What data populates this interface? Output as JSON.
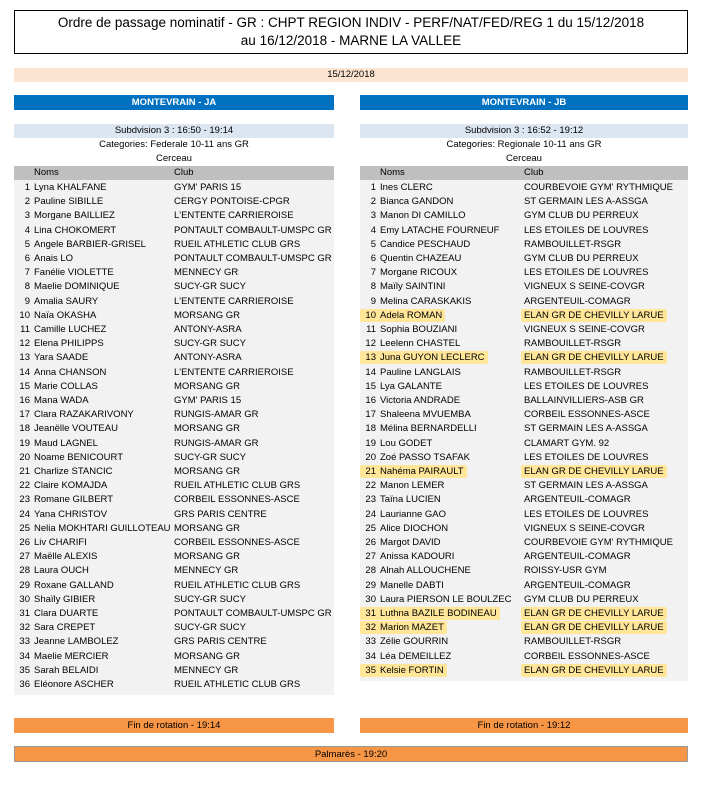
{
  "header": {
    "title": "Ordre de passage nominatif - GR : CHPT REGION INDIV - PERF/NAT/FED/REG 1 du 15/12/2018 au 16/12/2018 - MARNE LA VALLEE"
  },
  "date": "15/12/2018",
  "columns": [
    {
      "team": "MONTEVRAIN - JA",
      "subdivision": "Subdvision 3 : 16:50 - 19:14",
      "category": "Categories: Federale 10-11 ans GR",
      "apparatus": "Cerceau",
      "headers": [
        "Noms",
        "Club"
      ],
      "rows": [
        {
          "rank": 1,
          "name": "Lyna KHALFANE",
          "club": "GYM' PARIS 15"
        },
        {
          "rank": 2,
          "name": "Pauline SIBILLE",
          "club": "CERGY PONTOISE-CPGR"
        },
        {
          "rank": 3,
          "name": "Morgane BAILLIEZ",
          "club": "L'ENTENTE CARRIEROISE"
        },
        {
          "rank": 4,
          "name": "Lina CHOKOMERT",
          "club": "PONTAULT COMBAULT-UMSPC GR"
        },
        {
          "rank": 5,
          "name": "Angele BARBIER-GRISEL",
          "club": "RUEIL ATHLETIC CLUB GRS"
        },
        {
          "rank": 6,
          "name": "Anais LO",
          "club": "PONTAULT COMBAULT-UMSPC GR"
        },
        {
          "rank": 7,
          "name": "Fanélie VIOLETTE",
          "club": "MENNECY GR"
        },
        {
          "rank": 8,
          "name": "Maelie DOMINIQUE",
          "club": "SUCY-GR SUCY"
        },
        {
          "rank": 9,
          "name": "Amalia SAURY",
          "club": "L'ENTENTE CARRIEROISE"
        },
        {
          "rank": 10,
          "name": "Naïa OKASHA",
          "club": "MORSANG GR"
        },
        {
          "rank": 11,
          "name": "Camille LUCHEZ",
          "club": "ANTONY-ASRA"
        },
        {
          "rank": 12,
          "name": "Elena PHILIPPS",
          "club": "SUCY-GR SUCY"
        },
        {
          "rank": 13,
          "name": "Yara SAADE",
          "club": "ANTONY-ASRA"
        },
        {
          "rank": 14,
          "name": "Anna CHANSON",
          "club": "L'ENTENTE CARRIEROISE"
        },
        {
          "rank": 15,
          "name": "Marie COLLAS",
          "club": "MORSANG GR"
        },
        {
          "rank": 16,
          "name": "Mana WADA",
          "club": "GYM' PARIS 15"
        },
        {
          "rank": 17,
          "name": "Clara RAZAKARIVONY",
          "club": "RUNGIS-AMAR GR"
        },
        {
          "rank": 18,
          "name": "Jeanëlle VOUTEAU",
          "club": "MORSANG GR"
        },
        {
          "rank": 19,
          "name": "Maud LAGNEL",
          "club": "RUNGIS-AMAR GR"
        },
        {
          "rank": 20,
          "name": "Noame BENICOURT",
          "club": "SUCY-GR SUCY"
        },
        {
          "rank": 21,
          "name": "Charlize STANCIC",
          "club": "MORSANG GR"
        },
        {
          "rank": 22,
          "name": "Claire KOMAJDA",
          "club": "RUEIL ATHLETIC CLUB GRS"
        },
        {
          "rank": 23,
          "name": "Romane GILBERT",
          "club": "CORBEIL ESSONNES-ASCE"
        },
        {
          "rank": 24,
          "name": "Yana CHRISTOV",
          "club": "GRS PARIS CENTRE"
        },
        {
          "rank": 25,
          "name": "Nelia MOKHTARI GUILLOTEAU",
          "club": "MORSANG GR"
        },
        {
          "rank": 26,
          "name": "Liv CHARIFI",
          "club": "CORBEIL ESSONNES-ASCE"
        },
        {
          "rank": 27,
          "name": "Maëlle ALEXIS",
          "club": "MORSANG GR"
        },
        {
          "rank": 28,
          "name": "Laura OUCH",
          "club": "MENNECY GR"
        },
        {
          "rank": 29,
          "name": "Roxane GALLAND",
          "club": "RUEIL ATHLETIC CLUB GRS"
        },
        {
          "rank": 30,
          "name": "Shaïly GIBIER",
          "club": "SUCY-GR SUCY"
        },
        {
          "rank": 31,
          "name": "Clara DUARTE",
          "club": "PONTAULT COMBAULT-UMSPC GR"
        },
        {
          "rank": 32,
          "name": "Sara CREPET",
          "club": "SUCY-GR SUCY"
        },
        {
          "rank": 33,
          "name": "Jeanne LAMBOLEZ",
          "club": "GRS PARIS CENTRE"
        },
        {
          "rank": 34,
          "name": "Maelie MERCIER",
          "club": "MORSANG GR"
        },
        {
          "rank": 35,
          "name": "Sarah BELAIDI",
          "club": "MENNECY GR"
        },
        {
          "rank": 36,
          "name": "Eléonore ASCHER",
          "club": "RUEIL ATHLETIC CLUB GRS"
        }
      ],
      "footer": "Fin de rotation - 19:14"
    },
    {
      "team": "MONTEVRAIN - JB",
      "subdivision": "Subdvision 3 : 16:52 - 19:12",
      "category": "Categories: Regionale 10-11 ans GR",
      "apparatus": "Cerceau",
      "headers": [
        "Noms",
        "Club"
      ],
      "rows": [
        {
          "rank": 1,
          "name": "Ines CLERC",
          "club": "COURBEVOIE GYM' RYTHMIQUE"
        },
        {
          "rank": 2,
          "name": "Bianca GANDON",
          "club": "ST GERMAIN LES A-ASSGA"
        },
        {
          "rank": 3,
          "name": "Manon DI CAMILLO",
          "club": "GYM CLUB DU PERREUX"
        },
        {
          "rank": 4,
          "name": "Emy LATACHE FOURNEUF",
          "club": "LES ETOILES DE LOUVRES"
        },
        {
          "rank": 5,
          "name": "Candice PESCHAUD",
          "club": "RAMBOUILLET-RSGR"
        },
        {
          "rank": 6,
          "name": "Quentin CHAZEAU",
          "club": "GYM CLUB DU PERREUX"
        },
        {
          "rank": 7,
          "name": "Morgane RICOUX",
          "club": "LES ETOILES DE LOUVRES"
        },
        {
          "rank": 8,
          "name": "Maïly SAINTINI",
          "club": "VIGNEUX S SEINE-COVGR"
        },
        {
          "rank": 9,
          "name": "Melina CARASKAKIS",
          "club": "ARGENTEUIL-COMAGR"
        },
        {
          "rank": 10,
          "name": "Adela ROMAN",
          "club": "ELAN GR DE CHEVILLY LARUE",
          "highlight": true
        },
        {
          "rank": 11,
          "name": "Sophia BOUZIANI",
          "club": "VIGNEUX S SEINE-COVGR"
        },
        {
          "rank": 12,
          "name": "Leelenn CHASTEL",
          "club": "RAMBOUILLET-RSGR"
        },
        {
          "rank": 13,
          "name": "Juna GUYON LECLERC",
          "club": "ELAN GR DE CHEVILLY LARUE",
          "highlight": true
        },
        {
          "rank": 14,
          "name": "Pauline LANGLAIS",
          "club": "RAMBOUILLET-RSGR"
        },
        {
          "rank": 15,
          "name": "Lya GALANTE",
          "club": "LES ETOILES DE LOUVRES"
        },
        {
          "rank": 16,
          "name": "Victoria ANDRADE",
          "club": "BALLAINVILLIERS-ASB GR"
        },
        {
          "rank": 17,
          "name": "Shaleena MVUEMBA",
          "club": "CORBEIL ESSONNES-ASCE"
        },
        {
          "rank": 18,
          "name": "Mélina BERNARDELLI",
          "club": "ST GERMAIN LES A-ASSGA"
        },
        {
          "rank": 19,
          "name": "Lou GODET",
          "club": "CLAMART GYM. 92"
        },
        {
          "rank": 20,
          "name": "Zoé PASSO TSAFAK",
          "club": "LES ETOILES DE LOUVRES"
        },
        {
          "rank": 21,
          "name": "Nahéma PAIRAULT",
          "club": "ELAN GR DE CHEVILLY LARUE",
          "highlight": true
        },
        {
          "rank": 22,
          "name": "Manon LEMER",
          "club": "ST GERMAIN LES A-ASSGA"
        },
        {
          "rank": 23,
          "name": "Taïna LUCIEN",
          "club": "ARGENTEUIL-COMAGR"
        },
        {
          "rank": 24,
          "name": "Laurianne GAO",
          "club": "LES ETOILES DE LOUVRES"
        },
        {
          "rank": 25,
          "name": "Alice DIOCHON",
          "club": "VIGNEUX S SEINE-COVGR"
        },
        {
          "rank": 26,
          "name": "Margot DAVID",
          "club": "COURBEVOIE GYM' RYTHMIQUE"
        },
        {
          "rank": 27,
          "name": "Anissa KADOURI",
          "club": "ARGENTEUIL-COMAGR"
        },
        {
          "rank": 28,
          "name": "Alnah ALLOUCHENE",
          "club": "ROISSY-USR GYM"
        },
        {
          "rank": 29,
          "name": "Manelle DABTI",
          "club": "ARGENTEUIL-COMAGR"
        },
        {
          "rank": 30,
          "name": "Laura PIERSON LE BOULZEC",
          "club": "GYM CLUB DU PERREUX"
        },
        {
          "rank": 31,
          "name": "Luthna BAZILE BODINEAU",
          "club": "ELAN GR DE CHEVILLY LARUE",
          "highlight": true
        },
        {
          "rank": 32,
          "name": "Marion MAZET",
          "club": "ELAN GR DE CHEVILLY LARUE",
          "highlight": true
        },
        {
          "rank": 33,
          "name": "Zélie GOURRIN",
          "club": "RAMBOUILLET-RSGR"
        },
        {
          "rank": 34,
          "name": "Léa DEMEILLEZ",
          "club": "CORBEIL ESSONNES-ASCE"
        },
        {
          "rank": 35,
          "name": "Kelsie FORTIN",
          "club": "ELAN GR DE CHEVILLY LARUE",
          "highlight": true
        }
      ],
      "footer": "Fin de rotation - 19:12"
    }
  ],
  "palmares": "Palmarès - 19:20"
}
